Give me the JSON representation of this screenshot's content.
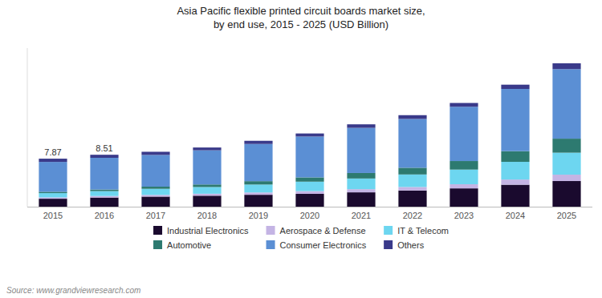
{
  "chart_data": {
    "type": "bar",
    "stacked": true,
    "title": "Asia Pacific flexible printed circuit boards market size,\nby end use, 2015 - 2025 (USD Billion)",
    "source": "Source: www.grandviewresearch.com",
    "categories": [
      "2015",
      "2016",
      "2017",
      "2018",
      "2019",
      "2020",
      "2021",
      "2022",
      "2023",
      "2024",
      "2025"
    ],
    "series": [
      {
        "name": "Industrial Electronics",
        "color": "#1a0a2e",
        "values": [
          1.3,
          1.5,
          1.65,
          1.8,
          1.95,
          2.1,
          2.35,
          2.65,
          3.0,
          3.6,
          4.2
        ]
      },
      {
        "name": "Aerospace & Defense",
        "color": "#c4b4e4",
        "values": [
          0.22,
          0.25,
          0.28,
          0.32,
          0.38,
          0.45,
          0.52,
          0.58,
          0.68,
          0.85,
          1.05
        ]
      },
      {
        "name": "IT & Telecom",
        "color": "#6dd6f0",
        "values": [
          0.7,
          0.8,
          1.0,
          1.1,
          1.3,
          1.55,
          1.75,
          2.05,
          2.4,
          2.9,
          3.6
        ]
      },
      {
        "name": "Automotive",
        "color": "#2d7a70",
        "values": [
          0.22,
          0.26,
          0.35,
          0.42,
          0.55,
          0.7,
          0.9,
          1.1,
          1.4,
          1.75,
          2.3
        ]
      },
      {
        "name": "Consumer Electronics",
        "color": "#5b8fd4",
        "values": [
          4.9,
          5.2,
          5.2,
          5.6,
          6.1,
          6.7,
          7.4,
          8.0,
          8.9,
          10.2,
          11.4
        ]
      },
      {
        "name": "Others",
        "color": "#3a3a8a",
        "values": [
          0.53,
          0.5,
          0.52,
          0.46,
          0.52,
          0.5,
          0.58,
          0.62,
          0.62,
          0.7,
          0.95
        ]
      }
    ],
    "annotations": [
      {
        "text": "7.87",
        "category": "2015",
        "value": 7.87
      },
      {
        "text": "8.51",
        "category": "2016",
        "value": 8.51
      }
    ],
    "ylim": [
      0,
      26
    ],
    "tick_labels": "x",
    "grid": false,
    "legend": "bottom"
  }
}
